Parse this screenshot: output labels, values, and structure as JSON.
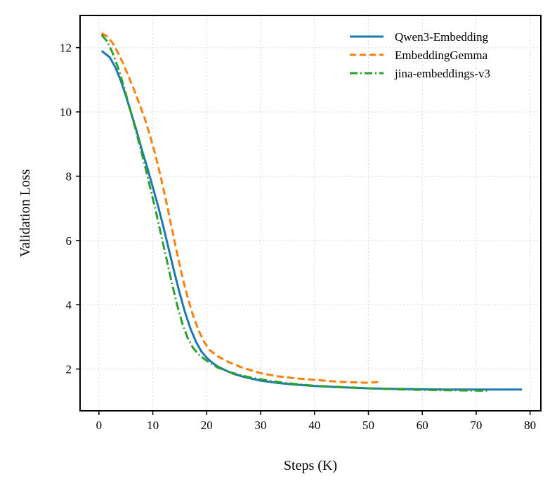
{
  "chart_data": {
    "type": "line",
    "title": "",
    "xlabel": "Steps (K)",
    "ylabel": "Validation Loss",
    "xlim": [
      -3.5,
      82
    ],
    "ylim": [
      0.7,
      13.0
    ],
    "xticks": [
      0,
      10,
      20,
      30,
      40,
      50,
      60,
      70,
      80
    ],
    "yticks": [
      2,
      4,
      6,
      8,
      10,
      12
    ],
    "xtick_labels": [
      "0",
      "10",
      "20",
      "30",
      "40",
      "50",
      "60",
      "70",
      "80"
    ],
    "ytick_labels": [
      "2",
      "4",
      "6",
      "8",
      "10",
      "12"
    ],
    "grid": true,
    "legend_position": "top-right",
    "series": [
      {
        "name": "Qwen3-Embedding",
        "color": "#1f77b4",
        "style": "solid",
        "x": [
          0.5,
          2,
          3,
          4,
          5,
          6,
          7,
          8,
          9,
          10,
          11,
          12,
          13,
          14,
          15,
          16,
          17,
          18,
          19,
          20,
          21,
          22,
          23,
          24,
          25,
          27,
          30,
          33,
          36,
          40,
          45,
          50,
          55,
          60,
          65,
          70,
          75,
          78.5
        ],
        "y": [
          11.9,
          11.7,
          11.4,
          11.0,
          10.5,
          9.95,
          9.4,
          8.8,
          8.25,
          7.65,
          7.05,
          6.4,
          5.7,
          5.0,
          4.35,
          3.75,
          3.25,
          2.85,
          2.55,
          2.35,
          2.2,
          2.08,
          2.0,
          1.92,
          1.85,
          1.75,
          1.64,
          1.57,
          1.52,
          1.47,
          1.43,
          1.4,
          1.38,
          1.37,
          1.36,
          1.36,
          1.36,
          1.36
        ]
      },
      {
        "name": "EmbeddingGemma",
        "color": "#ff7f0e",
        "style": "dashed",
        "x": [
          0.5,
          1.5,
          2.5,
          3.5,
          4.5,
          5.5,
          6.5,
          7.5,
          8.5,
          9.5,
          10.5,
          11.5,
          12.5,
          13.5,
          14.5,
          15.5,
          16.5,
          17.5,
          18.5,
          19.5,
          20.5,
          22,
          24,
          26,
          28,
          30,
          33,
          36,
          40,
          45,
          50,
          52
        ],
        "y": [
          12.45,
          12.35,
          12.15,
          11.85,
          11.5,
          11.1,
          10.7,
          10.25,
          9.8,
          9.25,
          8.65,
          7.95,
          7.2,
          6.4,
          5.6,
          4.85,
          4.2,
          3.65,
          3.2,
          2.85,
          2.6,
          2.4,
          2.22,
          2.08,
          1.97,
          1.87,
          1.78,
          1.72,
          1.66,
          1.6,
          1.57,
          1.6
        ]
      },
      {
        "name": "jina-embeddings-v3",
        "color": "#2ca02c",
        "style": "dashdot",
        "x": [
          0.5,
          1.5,
          2.5,
          3.5,
          4.5,
          5.5,
          6.5,
          7.5,
          8.5,
          9.5,
          10.5,
          11.5,
          12.5,
          13.5,
          14.5,
          15.5,
          16.5,
          17.5,
          18.5,
          19.5,
          20.5,
          22,
          24,
          26,
          28,
          30,
          33,
          36,
          40,
          45,
          50,
          55,
          60,
          65,
          70,
          72
        ],
        "y": [
          12.4,
          12.2,
          11.85,
          11.4,
          10.85,
          10.25,
          9.65,
          9.0,
          8.35,
          7.65,
          6.95,
          6.2,
          5.45,
          4.7,
          4.0,
          3.4,
          2.95,
          2.65,
          2.45,
          2.32,
          2.2,
          2.05,
          1.92,
          1.82,
          1.74,
          1.68,
          1.6,
          1.54,
          1.48,
          1.44,
          1.4,
          1.37,
          1.35,
          1.34,
          1.33,
          1.32
        ]
      }
    ]
  }
}
